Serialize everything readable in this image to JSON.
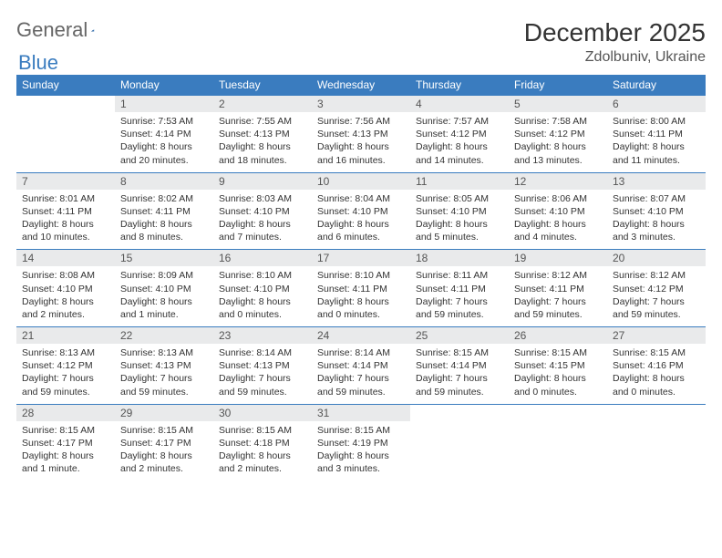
{
  "logo": {
    "text1": "General",
    "text2": "Blue"
  },
  "title": "December 2025",
  "location": "Zdolbuniv, Ukraine",
  "colors": {
    "header_bg": "#3a7cbf",
    "header_text": "#ffffff",
    "daynum_bg": "#e9eaeb",
    "border": "#3a7cbf",
    "text": "#333333",
    "page_bg": "#ffffff"
  },
  "day_headers": [
    "Sunday",
    "Monday",
    "Tuesday",
    "Wednesday",
    "Thursday",
    "Friday",
    "Saturday"
  ],
  "weeks": [
    [
      {
        "n": "",
        "sr": "",
        "ss": "",
        "dl": ""
      },
      {
        "n": "1",
        "sr": "Sunrise: 7:53 AM",
        "ss": "Sunset: 4:14 PM",
        "dl": "Daylight: 8 hours and 20 minutes."
      },
      {
        "n": "2",
        "sr": "Sunrise: 7:55 AM",
        "ss": "Sunset: 4:13 PM",
        "dl": "Daylight: 8 hours and 18 minutes."
      },
      {
        "n": "3",
        "sr": "Sunrise: 7:56 AM",
        "ss": "Sunset: 4:13 PM",
        "dl": "Daylight: 8 hours and 16 minutes."
      },
      {
        "n": "4",
        "sr": "Sunrise: 7:57 AM",
        "ss": "Sunset: 4:12 PM",
        "dl": "Daylight: 8 hours and 14 minutes."
      },
      {
        "n": "5",
        "sr": "Sunrise: 7:58 AM",
        "ss": "Sunset: 4:12 PM",
        "dl": "Daylight: 8 hours and 13 minutes."
      },
      {
        "n": "6",
        "sr": "Sunrise: 8:00 AM",
        "ss": "Sunset: 4:11 PM",
        "dl": "Daylight: 8 hours and 11 minutes."
      }
    ],
    [
      {
        "n": "7",
        "sr": "Sunrise: 8:01 AM",
        "ss": "Sunset: 4:11 PM",
        "dl": "Daylight: 8 hours and 10 minutes."
      },
      {
        "n": "8",
        "sr": "Sunrise: 8:02 AM",
        "ss": "Sunset: 4:11 PM",
        "dl": "Daylight: 8 hours and 8 minutes."
      },
      {
        "n": "9",
        "sr": "Sunrise: 8:03 AM",
        "ss": "Sunset: 4:10 PM",
        "dl": "Daylight: 8 hours and 7 minutes."
      },
      {
        "n": "10",
        "sr": "Sunrise: 8:04 AM",
        "ss": "Sunset: 4:10 PM",
        "dl": "Daylight: 8 hours and 6 minutes."
      },
      {
        "n": "11",
        "sr": "Sunrise: 8:05 AM",
        "ss": "Sunset: 4:10 PM",
        "dl": "Daylight: 8 hours and 5 minutes."
      },
      {
        "n": "12",
        "sr": "Sunrise: 8:06 AM",
        "ss": "Sunset: 4:10 PM",
        "dl": "Daylight: 8 hours and 4 minutes."
      },
      {
        "n": "13",
        "sr": "Sunrise: 8:07 AM",
        "ss": "Sunset: 4:10 PM",
        "dl": "Daylight: 8 hours and 3 minutes."
      }
    ],
    [
      {
        "n": "14",
        "sr": "Sunrise: 8:08 AM",
        "ss": "Sunset: 4:10 PM",
        "dl": "Daylight: 8 hours and 2 minutes."
      },
      {
        "n": "15",
        "sr": "Sunrise: 8:09 AM",
        "ss": "Sunset: 4:10 PM",
        "dl": "Daylight: 8 hours and 1 minute."
      },
      {
        "n": "16",
        "sr": "Sunrise: 8:10 AM",
        "ss": "Sunset: 4:10 PM",
        "dl": "Daylight: 8 hours and 0 minutes."
      },
      {
        "n": "17",
        "sr": "Sunrise: 8:10 AM",
        "ss": "Sunset: 4:11 PM",
        "dl": "Daylight: 8 hours and 0 minutes."
      },
      {
        "n": "18",
        "sr": "Sunrise: 8:11 AM",
        "ss": "Sunset: 4:11 PM",
        "dl": "Daylight: 7 hours and 59 minutes."
      },
      {
        "n": "19",
        "sr": "Sunrise: 8:12 AM",
        "ss": "Sunset: 4:11 PM",
        "dl": "Daylight: 7 hours and 59 minutes."
      },
      {
        "n": "20",
        "sr": "Sunrise: 8:12 AM",
        "ss": "Sunset: 4:12 PM",
        "dl": "Daylight: 7 hours and 59 minutes."
      }
    ],
    [
      {
        "n": "21",
        "sr": "Sunrise: 8:13 AM",
        "ss": "Sunset: 4:12 PM",
        "dl": "Daylight: 7 hours and 59 minutes."
      },
      {
        "n": "22",
        "sr": "Sunrise: 8:13 AM",
        "ss": "Sunset: 4:13 PM",
        "dl": "Daylight: 7 hours and 59 minutes."
      },
      {
        "n": "23",
        "sr": "Sunrise: 8:14 AM",
        "ss": "Sunset: 4:13 PM",
        "dl": "Daylight: 7 hours and 59 minutes."
      },
      {
        "n": "24",
        "sr": "Sunrise: 8:14 AM",
        "ss": "Sunset: 4:14 PM",
        "dl": "Daylight: 7 hours and 59 minutes."
      },
      {
        "n": "25",
        "sr": "Sunrise: 8:15 AM",
        "ss": "Sunset: 4:14 PM",
        "dl": "Daylight: 7 hours and 59 minutes."
      },
      {
        "n": "26",
        "sr": "Sunrise: 8:15 AM",
        "ss": "Sunset: 4:15 PM",
        "dl": "Daylight: 8 hours and 0 minutes."
      },
      {
        "n": "27",
        "sr": "Sunrise: 8:15 AM",
        "ss": "Sunset: 4:16 PM",
        "dl": "Daylight: 8 hours and 0 minutes."
      }
    ],
    [
      {
        "n": "28",
        "sr": "Sunrise: 8:15 AM",
        "ss": "Sunset: 4:17 PM",
        "dl": "Daylight: 8 hours and 1 minute."
      },
      {
        "n": "29",
        "sr": "Sunrise: 8:15 AM",
        "ss": "Sunset: 4:17 PM",
        "dl": "Daylight: 8 hours and 2 minutes."
      },
      {
        "n": "30",
        "sr": "Sunrise: 8:15 AM",
        "ss": "Sunset: 4:18 PM",
        "dl": "Daylight: 8 hours and 2 minutes."
      },
      {
        "n": "31",
        "sr": "Sunrise: 8:15 AM",
        "ss": "Sunset: 4:19 PM",
        "dl": "Daylight: 8 hours and 3 minutes."
      },
      {
        "n": "",
        "sr": "",
        "ss": "",
        "dl": ""
      },
      {
        "n": "",
        "sr": "",
        "ss": "",
        "dl": ""
      },
      {
        "n": "",
        "sr": "",
        "ss": "",
        "dl": ""
      }
    ]
  ]
}
